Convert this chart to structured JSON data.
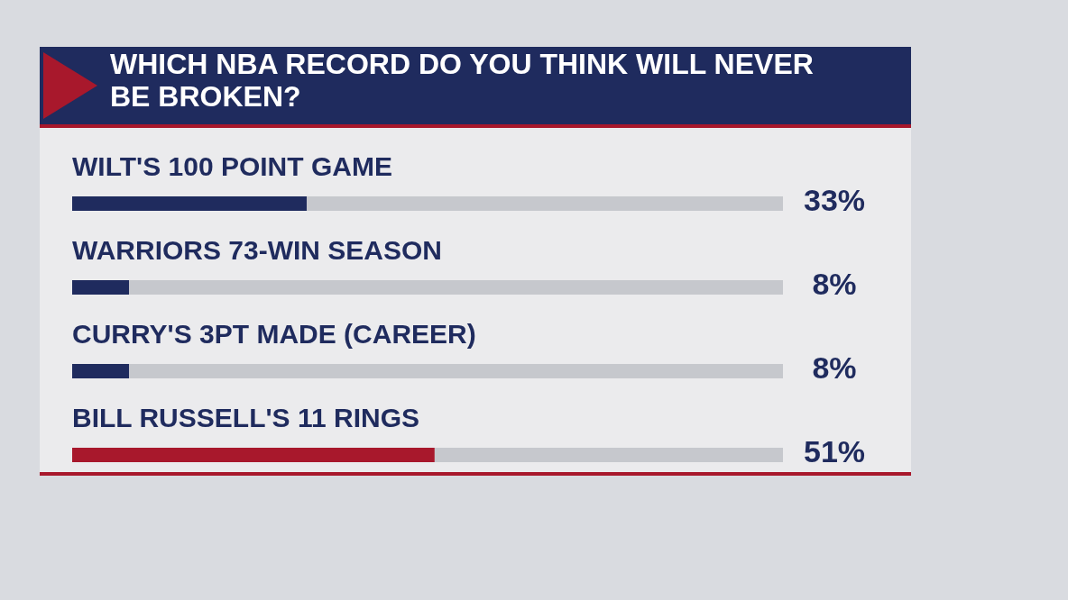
{
  "chart_data": {
    "type": "bar",
    "orientation": "horizontal",
    "stacked": true,
    "title": "WHICH NBA RECORD DO YOU THINK WILL NEVER BE BROKEN?",
    "categories": [
      "WILT'S 100 POINT GAME",
      "WARRIORS 73-WIN SEASON",
      "CURRY'S 3PT MADE (CAREER)",
      "BILL RUSSELL'S 11 RINGS"
    ],
    "series": [
      {
        "values": [
          33,
          8,
          8,
          51
        ],
        "colors": [
          "#1f2b5e",
          "#1f2b5e",
          "#1f2b5e",
          "#a8182c"
        ],
        "value_labels": [
          "33%",
          "8%",
          "8%",
          "51%"
        ]
      },
      {
        "values": [
          67,
          92,
          92,
          49
        ],
        "color": "#c6c8cd"
      }
    ],
    "xlim": [
      0,
      100
    ]
  }
}
